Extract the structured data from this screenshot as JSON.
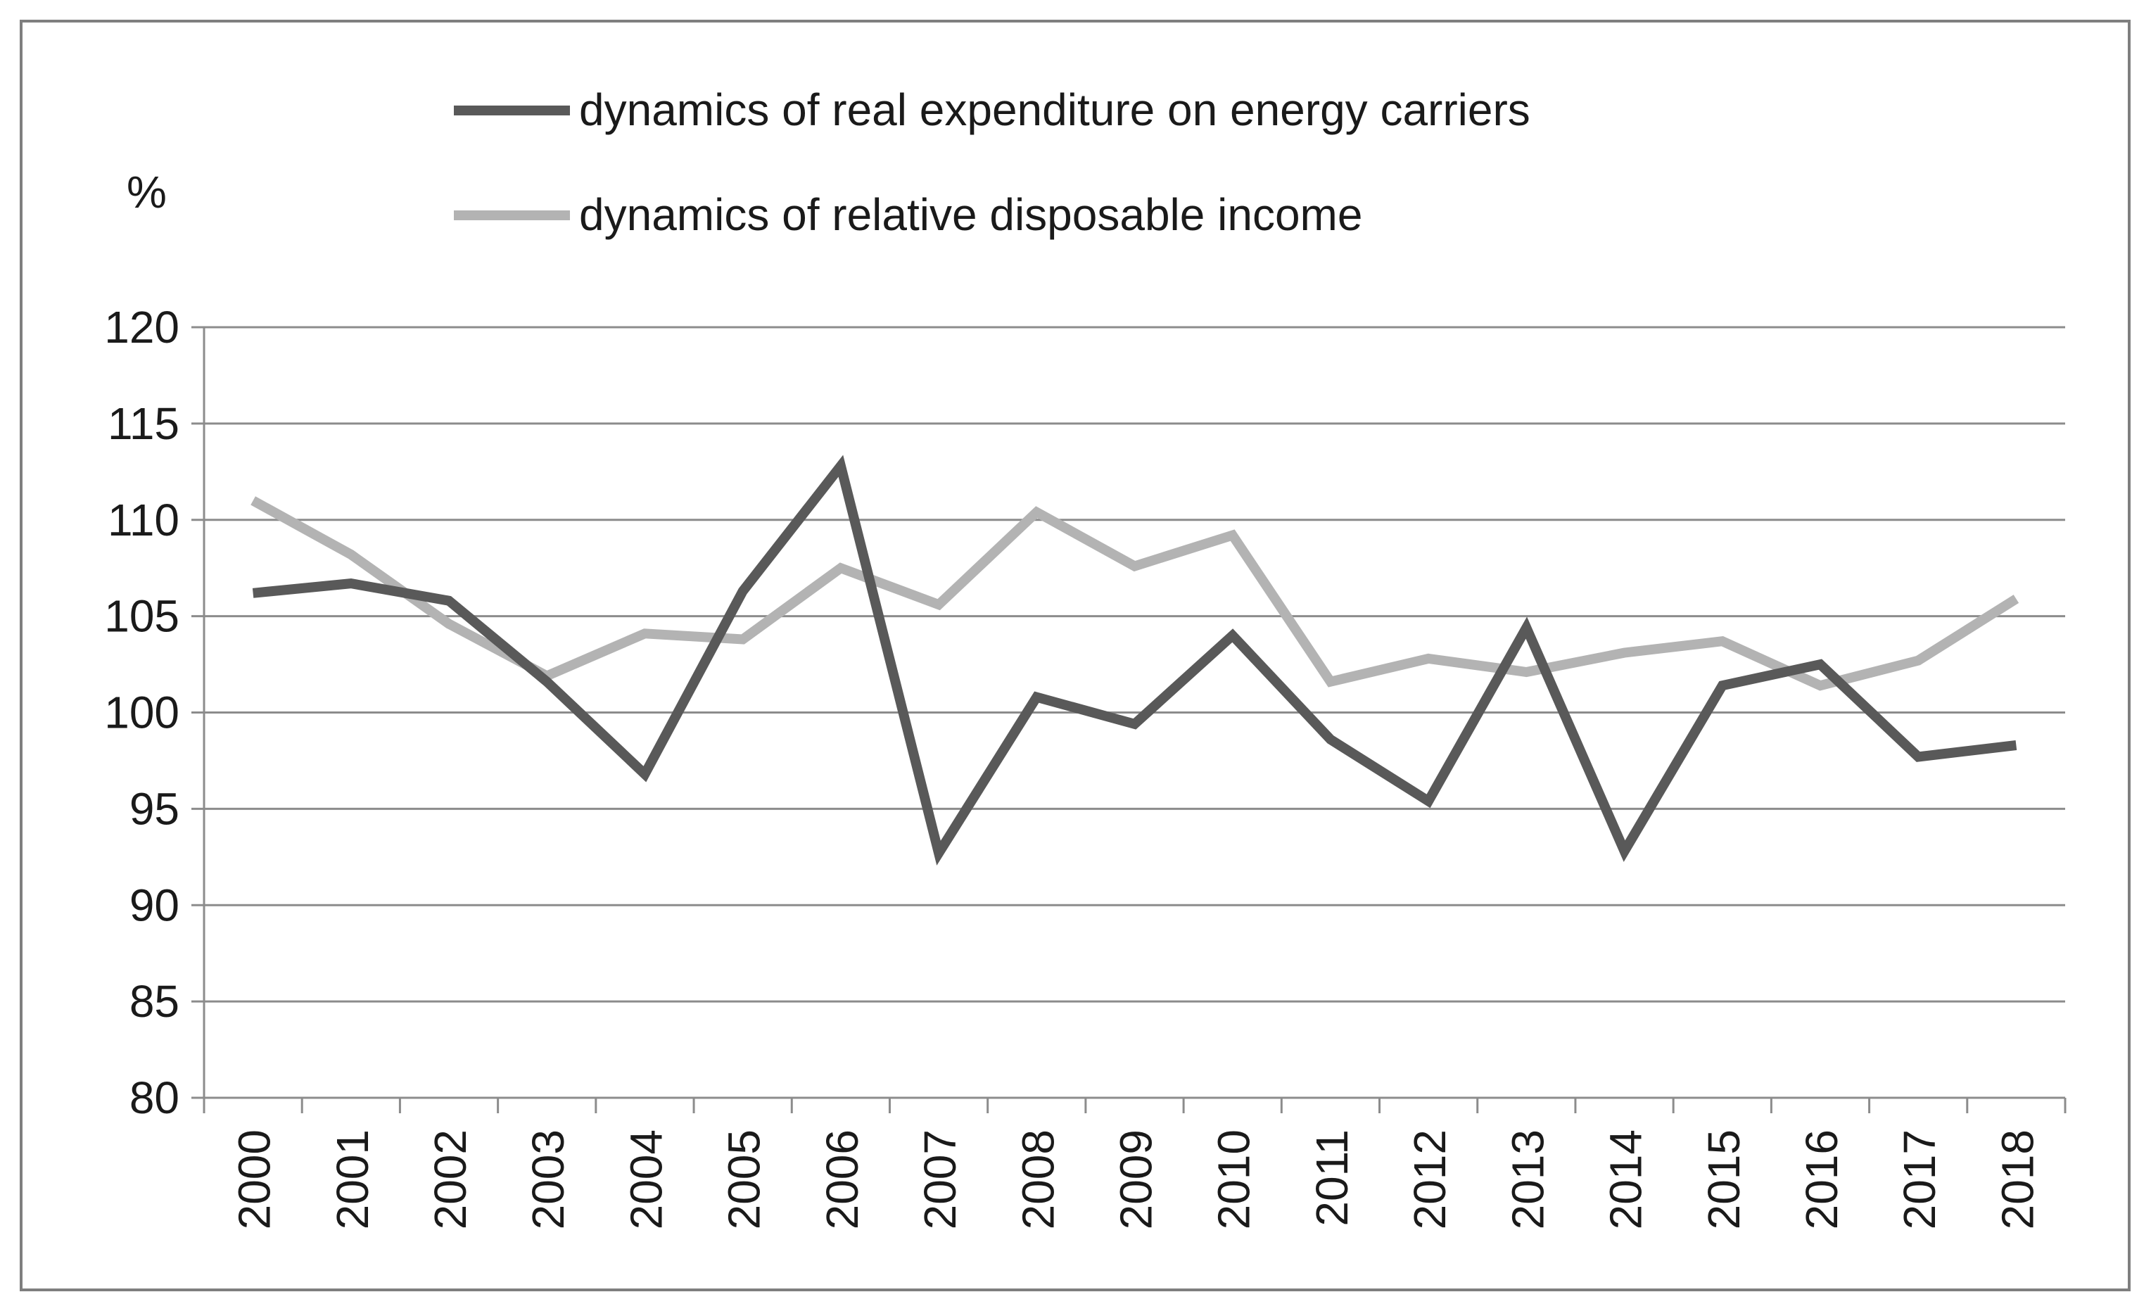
{
  "chart_data": {
    "type": "line",
    "title": "",
    "xlabel": "",
    "ylabel": "%",
    "ylim": [
      80,
      120
    ],
    "ytick_step": 5,
    "grid": true,
    "legend_position": "top",
    "categories": [
      "2000",
      "2001",
      "2002",
      "2003",
      "2004",
      "2005",
      "2006",
      "2007",
      "2008",
      "2009",
      "2010",
      "2011",
      "2012",
      "2013",
      "2014",
      "2015",
      "2016",
      "2017",
      "2018"
    ],
    "yticks": [
      "80",
      "85",
      "90",
      "95",
      "100",
      "105",
      "110",
      "115",
      "120"
    ],
    "series": [
      {
        "name": "dynamics of real  expenditure on energy carriers",
        "color": "#595959",
        "values": [
          106.2,
          106.7,
          105.8,
          101.6,
          96.8,
          106.3,
          112.8,
          92.7,
          100.8,
          99.4,
          104.0,
          98.6,
          95.4,
          104.4,
          92.8,
          101.4,
          102.5,
          97.7,
          98.3
        ]
      },
      {
        "name": "dynamics of relative disposable income",
        "color": "#b3b3b3",
        "values": [
          111.0,
          108.2,
          104.6,
          101.9,
          104.1,
          103.8,
          107.5,
          105.6,
          110.4,
          107.6,
          109.2,
          101.6,
          102.8,
          102.1,
          103.1,
          103.7,
          101.4,
          102.7,
          105.9
        ]
      }
    ]
  }
}
